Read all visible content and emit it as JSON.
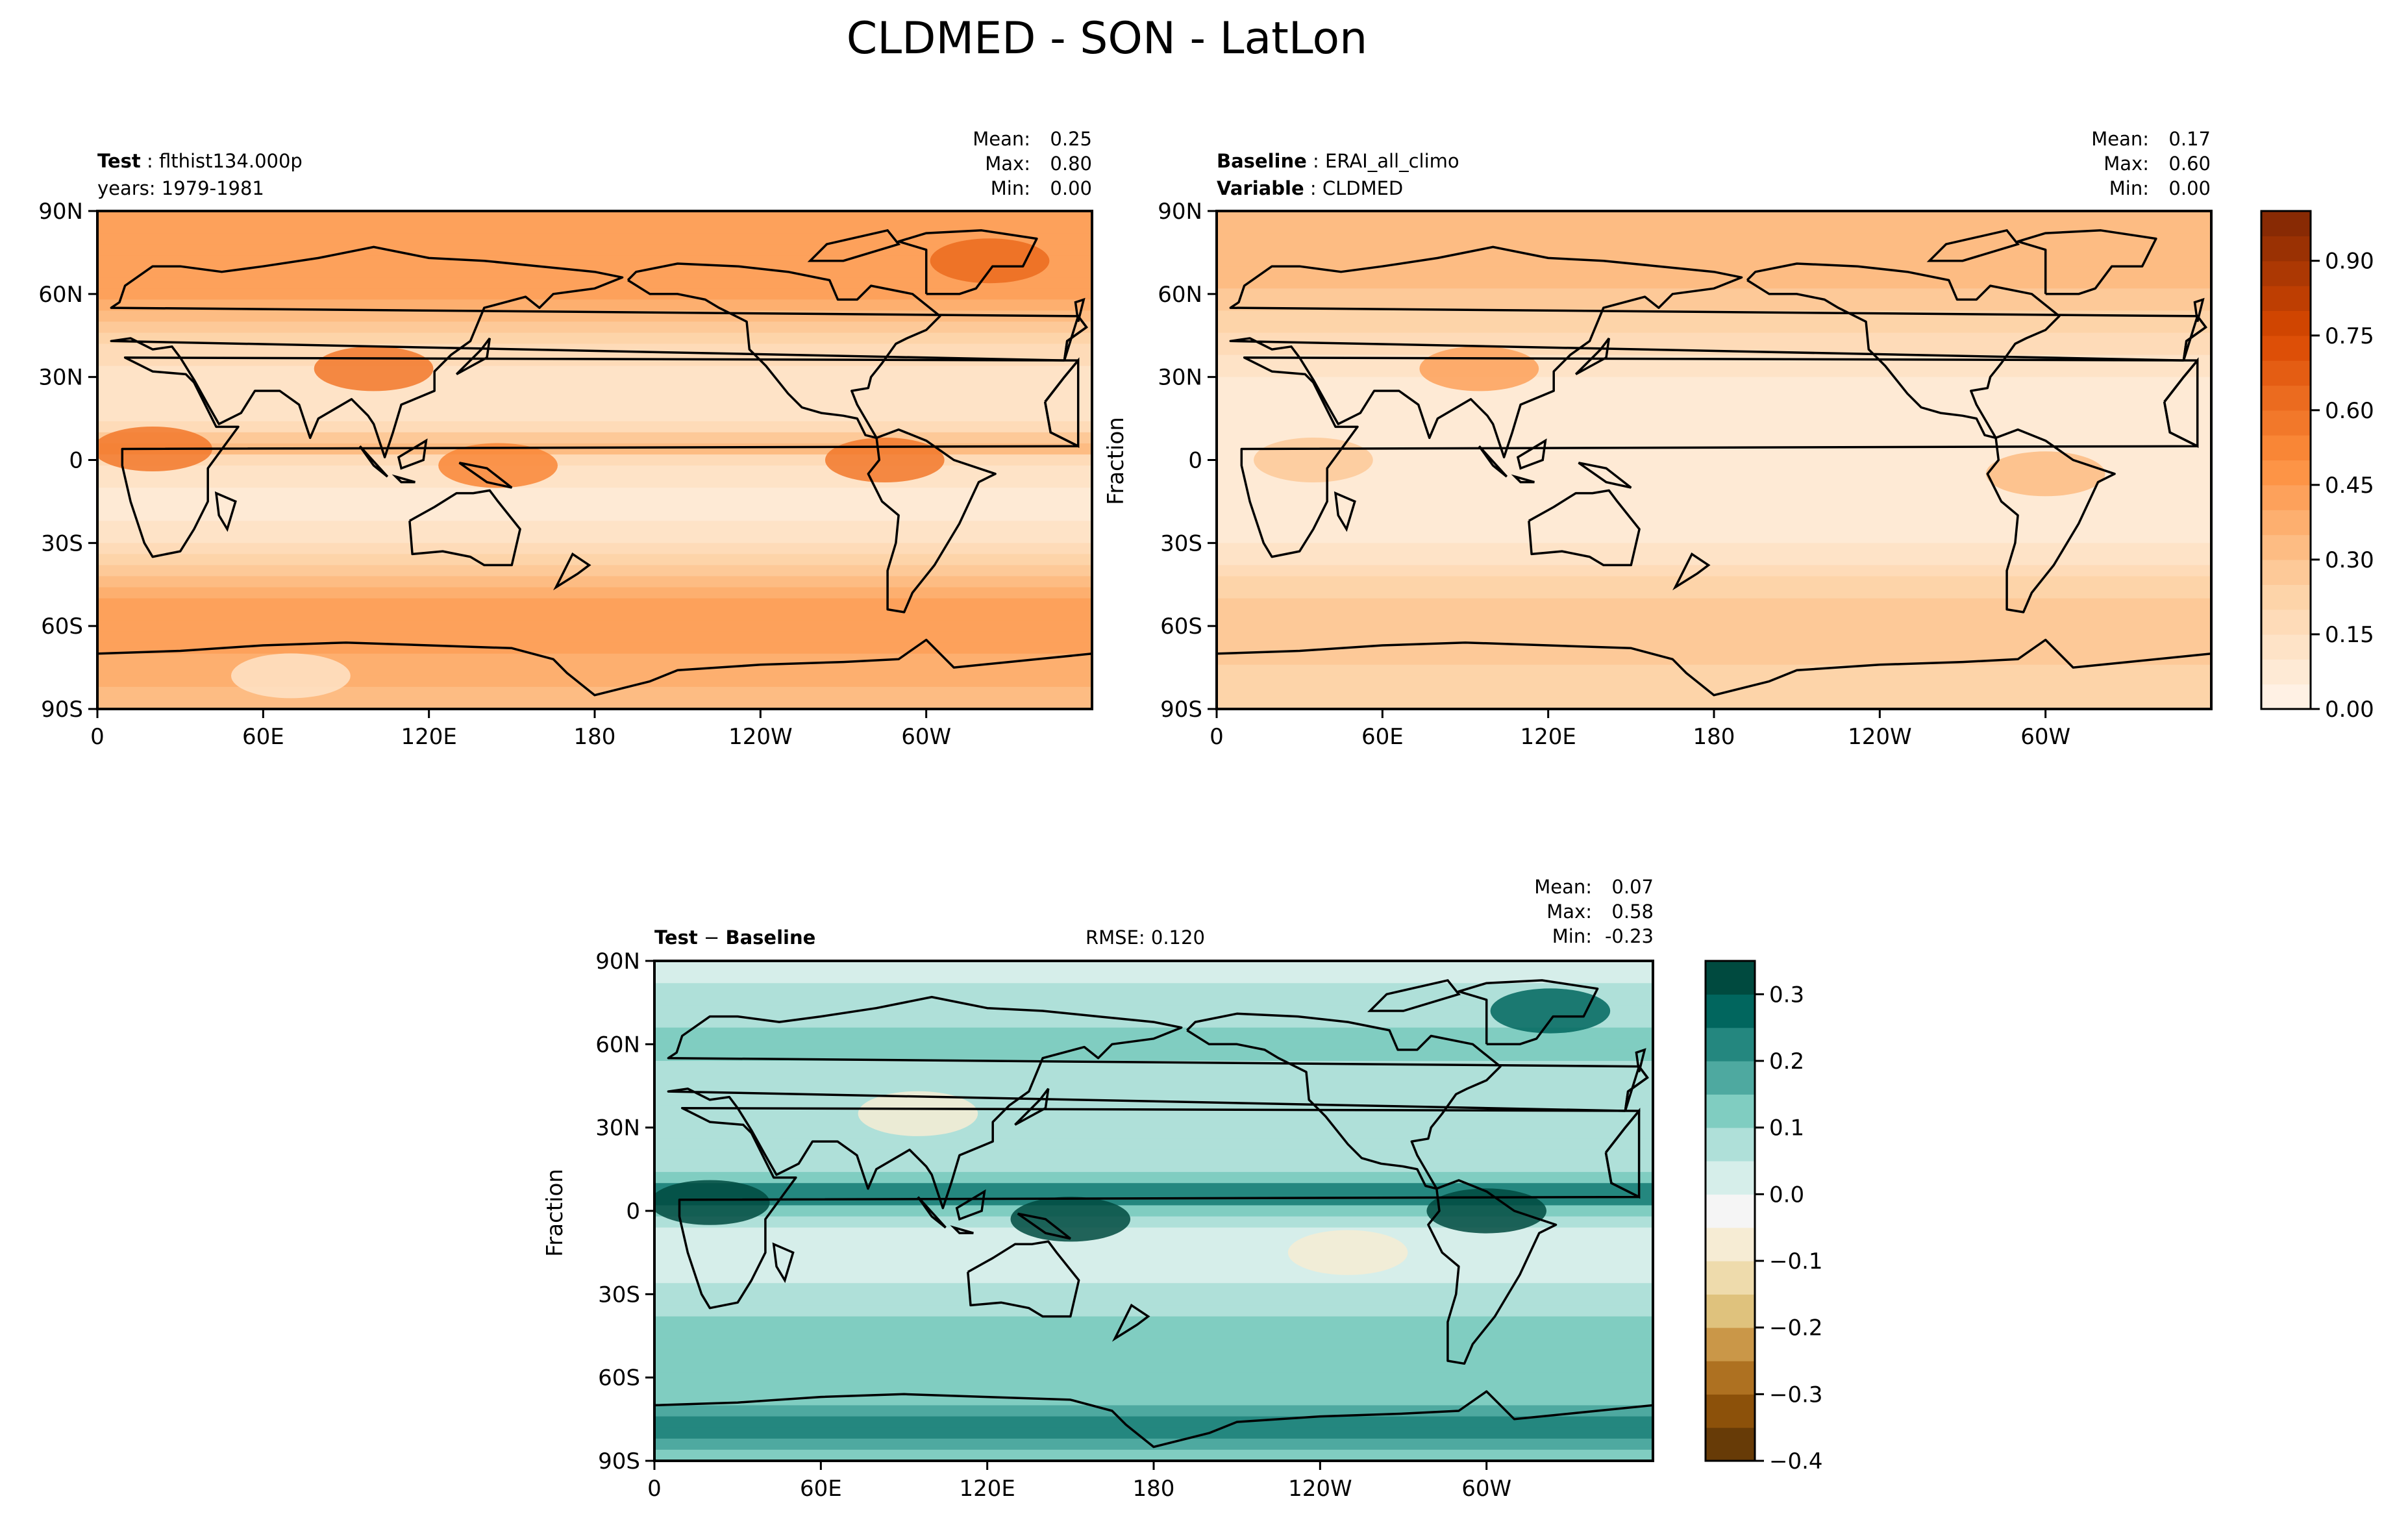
{
  "figure": {
    "title": "CLDMED - SON - LatLon"
  },
  "chart_data": [
    {
      "type": "heatmap",
      "panel": "test",
      "header": {
        "line1_bold": "Test",
        "line1_value": "flthist134.000p",
        "line2": "years: 1979-1981"
      },
      "stats": [
        {
          "label": "Mean:",
          "value": "0.25"
        },
        {
          "label": "Max:",
          "value": "0.80"
        },
        {
          "label": "Min:",
          "value": "0.00"
        }
      ],
      "ylabel": "",
      "x_ticks": [
        "0",
        "60E",
        "120E",
        "180",
        "120W",
        "60W"
      ],
      "y_ticks": [
        "90N",
        "60N",
        "30N",
        "0",
        "30S",
        "60S",
        "90S"
      ],
      "xlim": [
        0,
        360
      ],
      "ylim": [
        -90,
        90
      ],
      "bands": [
        {
          "lat": 90,
          "value": 0.4
        },
        {
          "lat": 75,
          "value": 0.43
        },
        {
          "lat": 60,
          "value": 0.42
        },
        {
          "lat": 50,
          "value": 0.3
        },
        {
          "lat": 40,
          "value": 0.18
        },
        {
          "lat": 30,
          "value": 0.14
        },
        {
          "lat": 20,
          "value": 0.13
        },
        {
          "lat": 10,
          "value": 0.18
        },
        {
          "lat": 5,
          "value": 0.38
        },
        {
          "lat": 0,
          "value": 0.16
        },
        {
          "lat": -10,
          "value": 0.1
        },
        {
          "lat": -20,
          "value": 0.08
        },
        {
          "lat": -30,
          "value": 0.14
        },
        {
          "lat": -40,
          "value": 0.3
        },
        {
          "lat": -55,
          "value": 0.45
        },
        {
          "lat": -65,
          "value": 0.42
        },
        {
          "lat": -75,
          "value": 0.38
        },
        {
          "lat": -90,
          "value": 0.3
        }
      ],
      "blobs": [
        {
          "lon": 20,
          "lat": 4,
          "value": 0.55
        },
        {
          "lon": 100,
          "lat": 33,
          "value": 0.55
        },
        {
          "lon": 145,
          "lat": -2,
          "value": 0.5
        },
        {
          "lon": 285,
          "lat": 0,
          "value": 0.55
        },
        {
          "lon": 323,
          "lat": 72,
          "value": 0.62
        },
        {
          "lon": 70,
          "lat": -78,
          "value": 0.1
        }
      ],
      "colorbar": "none"
    },
    {
      "type": "heatmap",
      "panel": "baseline",
      "header": {
        "line1_bold": "Baseline",
        "line1_value": "ERAI_all_climo",
        "line2_bold": "Variable",
        "line2_value": "CLDMED"
      },
      "stats": [
        {
          "label": "Mean:",
          "value": "0.17"
        },
        {
          "label": "Max:",
          "value": "0.60"
        },
        {
          "label": "Min:",
          "value": "0.00"
        }
      ],
      "ylabel": "Fraction",
      "x_ticks": [
        "0",
        "60E",
        "120E",
        "180",
        "120W",
        "60W"
      ],
      "y_ticks": [
        "90N",
        "60N",
        "30N",
        "0",
        "30S",
        "60S",
        "90S"
      ],
      "xlim": [
        0,
        360
      ],
      "ylim": [
        -90,
        90
      ],
      "bands": [
        {
          "lat": 90,
          "value": 0.35
        },
        {
          "lat": 75,
          "value": 0.33
        },
        {
          "lat": 60,
          "value": 0.3
        },
        {
          "lat": 45,
          "value": 0.2
        },
        {
          "lat": 30,
          "value": 0.1
        },
        {
          "lat": 15,
          "value": 0.07
        },
        {
          "lat": 0,
          "value": 0.08
        },
        {
          "lat": -15,
          "value": 0.06
        },
        {
          "lat": -30,
          "value": 0.1
        },
        {
          "lat": -45,
          "value": 0.22
        },
        {
          "lat": -60,
          "value": 0.3
        },
        {
          "lat": -75,
          "value": 0.25
        },
        {
          "lat": -90,
          "value": 0.2
        }
      ],
      "blobs": [
        {
          "lon": 95,
          "lat": 33,
          "value": 0.4
        },
        {
          "lon": 300,
          "lat": -5,
          "value": 0.32
        },
        {
          "lon": 35,
          "lat": 0,
          "value": 0.25
        }
      ],
      "colorbar": {
        "min": 0,
        "max": 1,
        "step": 0.05,
        "ticks": [
          "0.00",
          "0.15",
          "0.30",
          "0.45",
          "0.60",
          "0.75",
          "0.90"
        ],
        "tick_values": [
          0,
          0.15,
          0.3,
          0.45,
          0.6,
          0.75,
          0.9
        ],
        "colors": [
          "#fff5eb",
          "#fdd0a2",
          "#fd8d3c",
          "#d94801",
          "#7f2704"
        ]
      }
    },
    {
      "type": "heatmap",
      "panel": "difference",
      "header": {
        "line1_bold": "Test",
        "line1_op": "−",
        "line1_bold2": "Baseline",
        "rmse": "RMSE: 0.120"
      },
      "stats": [
        {
          "label": "Mean:",
          "value": "0.07"
        },
        {
          "label": "Max:",
          "value": "0.58"
        },
        {
          "label": "Min:",
          "value": "-0.23"
        }
      ],
      "ylabel": "Fraction",
      "x_ticks": [
        "0",
        "60E",
        "120E",
        "180",
        "120W",
        "60W"
      ],
      "y_ticks": [
        "90N",
        "60N",
        "30N",
        "0",
        "30S",
        "60S",
        "90S"
      ],
      "xlim": [
        0,
        360
      ],
      "ylim": [
        -90,
        90
      ],
      "bands": [
        {
          "lat": 90,
          "value": 0.04
        },
        {
          "lat": 75,
          "value": 0.06
        },
        {
          "lat": 60,
          "value": 0.12
        },
        {
          "lat": 45,
          "value": 0.07
        },
        {
          "lat": 30,
          "value": 0.06
        },
        {
          "lat": 15,
          "value": 0.07
        },
        {
          "lat": 5,
          "value": 0.28
        },
        {
          "lat": 0,
          "value": 0.1
        },
        {
          "lat": -10,
          "value": 0.02
        },
        {
          "lat": -20,
          "value": 0.02
        },
        {
          "lat": -35,
          "value": 0.08
        },
        {
          "lat": -50,
          "value": 0.14
        },
        {
          "lat": -65,
          "value": 0.1
        },
        {
          "lat": -78,
          "value": 0.26
        },
        {
          "lat": -90,
          "value": 0.12
        }
      ],
      "blobs": [
        {
          "lon": 20,
          "lat": 3,
          "value": 0.4
        },
        {
          "lon": 150,
          "lat": -3,
          "value": 0.4
        },
        {
          "lon": 300,
          "lat": 0,
          "value": 0.35
        },
        {
          "lon": 95,
          "lat": 35,
          "value": -0.1
        },
        {
          "lon": 250,
          "lat": -15,
          "value": -0.1
        },
        {
          "lon": 323,
          "lat": 72,
          "value": 0.25
        }
      ],
      "colorbar": {
        "min": -0.4,
        "max": 0.35,
        "step": 0.05,
        "ticks": [
          "0.3",
          "0.2",
          "0.1",
          "0.0",
          "−0.1",
          "−0.2",
          "−0.3",
          "−0.4"
        ],
        "tick_values": [
          0.3,
          0.2,
          0.1,
          0.0,
          -0.1,
          -0.2,
          -0.3,
          -0.4
        ],
        "colors": [
          "#543005",
          "#8c510a",
          "#bf812d",
          "#dfc27d",
          "#f6e8c3",
          "#f5f5f5",
          "#c7eae5",
          "#80cdc1",
          "#35978f",
          "#01665e",
          "#003c30"
        ]
      }
    }
  ]
}
